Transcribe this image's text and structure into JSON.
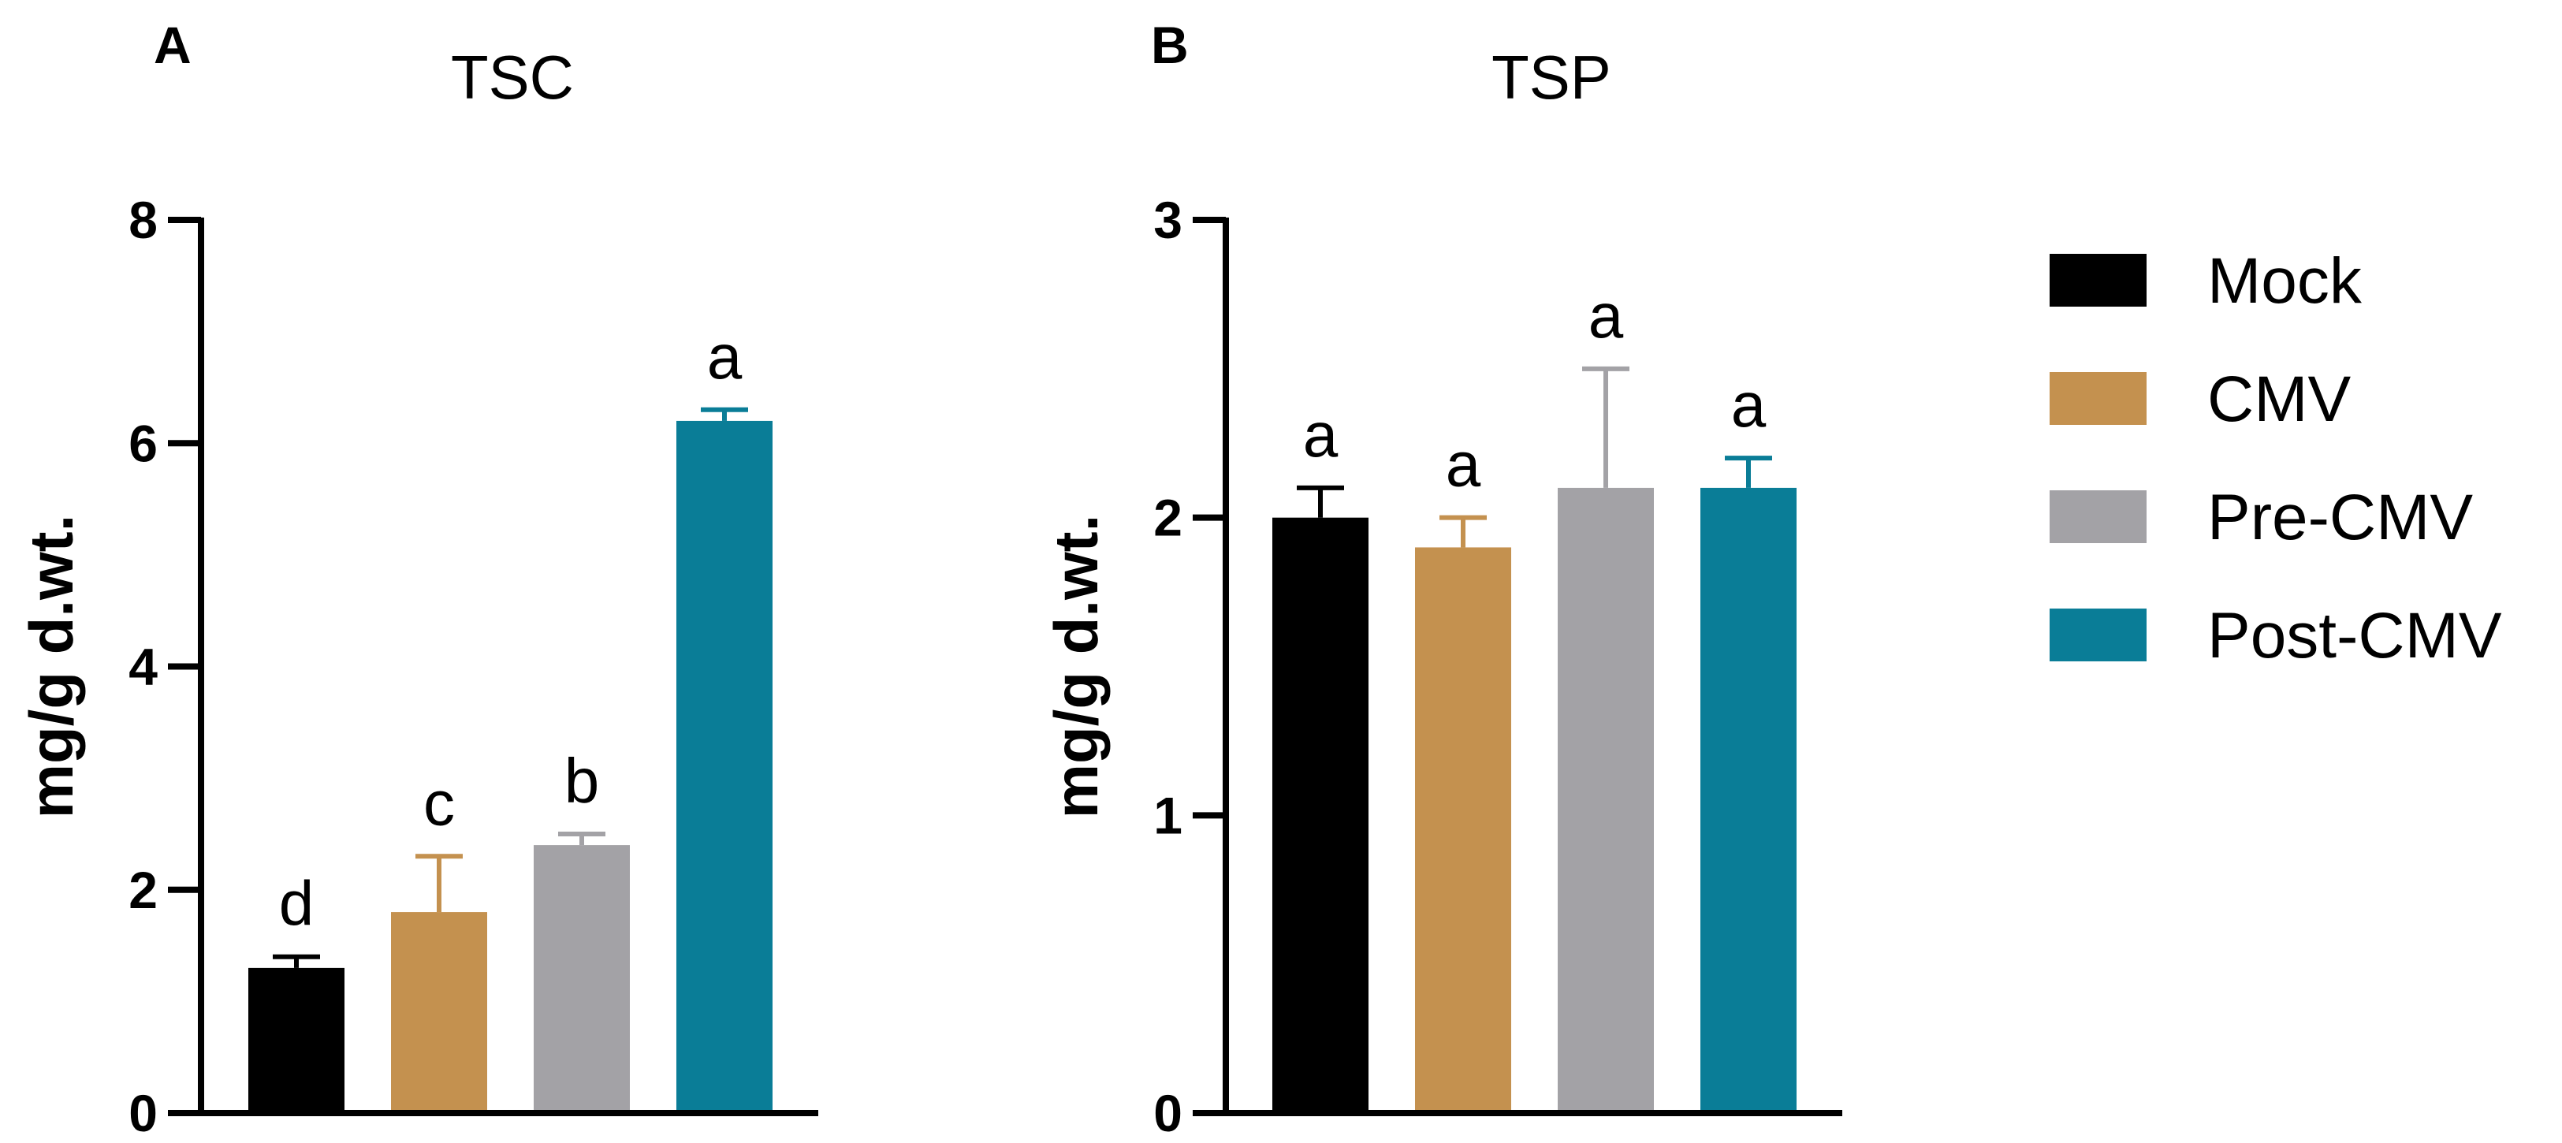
{
  "chart_data": [
    {
      "type": "bar",
      "panel": "A",
      "title": "TSC",
      "xlabel": "",
      "ylabel": "mg/g d.wt.",
      "ylim": [
        0,
        8
      ],
      "yticks": [
        0,
        2,
        4,
        6,
        8
      ],
      "categories": [
        "Mock",
        "CMV",
        "Pre-CMV",
        "Post-CMV"
      ],
      "values": [
        1.3,
        1.8,
        2.4,
        6.2
      ],
      "errors": [
        0.1,
        0.5,
        0.1,
        0.1
      ],
      "significance": [
        "d",
        "c",
        "b",
        "a"
      ]
    },
    {
      "type": "bar",
      "panel": "B",
      "title": "TSP",
      "xlabel": "",
      "ylabel": "mg/g d.wt.",
      "ylim": [
        0,
        3
      ],
      "yticks": [
        0,
        1,
        2,
        3
      ],
      "categories": [
        "Mock",
        "CMV",
        "Pre-CMV",
        "Post-CMV"
      ],
      "values": [
        2.0,
        1.9,
        2.1,
        2.1
      ],
      "errors": [
        0.1,
        0.1,
        0.4,
        0.1
      ],
      "significance": [
        "a",
        "a",
        "a",
        "a"
      ]
    }
  ],
  "legend": {
    "placement": "right",
    "items": [
      {
        "label": "Mock",
        "color": "#000000"
      },
      {
        "label": "CMV",
        "color": "#C4914F"
      },
      {
        "label": "Pre-CMV",
        "color": "#A3A2A6"
      },
      {
        "label": "Post-CMV",
        "color": "#0A7D97"
      }
    ]
  }
}
